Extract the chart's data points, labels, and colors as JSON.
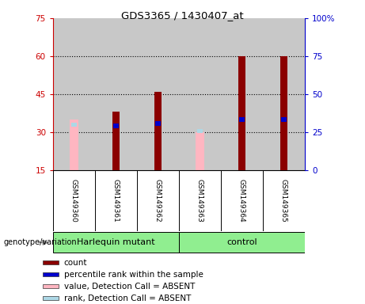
{
  "title": "GDS3365 / 1430407_at",
  "samples": [
    "GSM149360",
    "GSM149361",
    "GSM149362",
    "GSM149363",
    "GSM149364",
    "GSM149365"
  ],
  "groups": [
    {
      "label": "Harlequin mutant",
      "indices": [
        0,
        1,
        2
      ],
      "color": "#90EE90"
    },
    {
      "label": "control",
      "indices": [
        3,
        4,
        5
      ],
      "color": "#90EE90"
    }
  ],
  "ylim_left": [
    15,
    75
  ],
  "ylim_right": [
    0,
    100
  ],
  "yticks_left": [
    15,
    30,
    45,
    60,
    75
  ],
  "yticks_right": [
    0,
    25,
    50,
    75,
    100
  ],
  "yticklabels_right": [
    "0",
    "25",
    "50",
    "75",
    "100%"
  ],
  "bar_bottom": 15,
  "red_bars": [
    null,
    38,
    46,
    null,
    60,
    60
  ],
  "blue_ranks": [
    null,
    32.5,
    33.5,
    null,
    35,
    35
  ],
  "pink_bars": [
    35,
    null,
    null,
    30,
    null,
    null
  ],
  "lightblue_ranks": [
    33,
    null,
    null,
    30.5,
    null,
    null
  ],
  "colors": {
    "red_bar": "#8B0000",
    "blue_rank": "#0000CD",
    "pink_bar": "#FFB6C1",
    "lightblue_rank": "#ADD8E6",
    "axis_left_color": "#CC0000",
    "axis_right_color": "#0000CC",
    "grid_color": "black",
    "bg_plot": "#C8C8C8",
    "bg_outer": "#FFFFFF"
  },
  "legend_items": [
    {
      "color": "#8B0000",
      "label": "count"
    },
    {
      "color": "#0000CD",
      "label": "percentile rank within the sample"
    },
    {
      "color": "#FFB6C1",
      "label": "value, Detection Call = ABSENT"
    },
    {
      "color": "#ADD8E6",
      "label": "rank, Detection Call = ABSENT"
    }
  ]
}
